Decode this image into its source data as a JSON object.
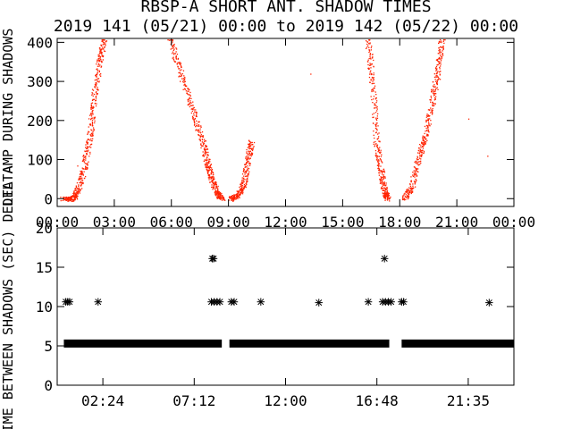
{
  "title": "RBSP-A SHORT ANT. SHADOW TIMES",
  "subtitle": "2019 141 (05/21) 00:00 to 2019 142 (05/22) 00:00",
  "colors": {
    "top_points": "#ff2200",
    "bottom_points": "#000000",
    "axes": "#000000"
  },
  "chart_data": [
    {
      "type": "scatter",
      "ylabel": "DELTA AMP DURING SHADOWS",
      "xlim": [
        0,
        24
      ],
      "ylim": [
        -20,
        410
      ],
      "xticks": [
        0,
        3,
        6,
        9,
        12,
        15,
        18,
        21,
        24
      ],
      "xtick_labels": [
        "00:00",
        "03:00",
        "06:00",
        "09:00",
        "12:00",
        "15:00",
        "18:00",
        "21:00",
        "00:00"
      ],
      "yticks": [
        0,
        100,
        200,
        300,
        400
      ],
      "ytick_labels": [
        "0",
        "100",
        "200",
        "300",
        "400"
      ],
      "segments": [
        {
          "x": [
            0.3,
            0.8,
            1.05,
            1.4,
            1.7,
            1.9,
            2.2,
            2.45
          ],
          "y": [
            0,
            0,
            20,
            80,
            160,
            250,
            350,
            410
          ]
        },
        {
          "x": [
            5.9,
            6.5,
            7.1,
            7.6,
            7.9,
            8.1,
            8.4,
            8.65
          ],
          "y": [
            410,
            320,
            230,
            150,
            90,
            50,
            15,
            0
          ]
        },
        {
          "x": [
            9.1,
            9.5,
            9.8,
            10.0,
            10.2
          ],
          "y": [
            0,
            10,
            40,
            100,
            150
          ]
        },
        {
          "x": [
            16.3,
            16.55,
            16.75,
            17.0,
            17.2,
            17.35
          ],
          "y": [
            410,
            300,
            150,
            70,
            20,
            0
          ]
        },
        {
          "x": [
            18.2,
            18.6,
            19.0,
            19.3,
            19.7,
            20.0,
            20.2
          ],
          "y": [
            0,
            30,
            110,
            160,
            250,
            330,
            410
          ]
        }
      ],
      "isolated": [
        {
          "x": 1.05,
          "y": 85
        },
        {
          "x": 13.3,
          "y": 320
        },
        {
          "x": 21.6,
          "y": 205
        },
        {
          "x": 22.6,
          "y": 110
        }
      ]
    },
    {
      "type": "scatter",
      "ylabel": "TIME BETWEEN SHADOWS (SEC)",
      "overlap_label": "DELTA",
      "xlim": [
        0,
        24
      ],
      "ylim": [
        0,
        20
      ],
      "xticks": [
        2.4,
        7.2,
        12.0,
        16.8,
        21.6
      ],
      "xtick_labels": [
        "02:24",
        "07:12",
        "12:00",
        "16:48",
        "21:35"
      ],
      "yticks": [
        0,
        5,
        10,
        15,
        20
      ],
      "ytick_labels": [
        "0",
        "5",
        "10",
        "15",
        "20"
      ],
      "band": {
        "y": 5.3,
        "ranges": [
          [
            0.35,
            8.65
          ],
          [
            9.05,
            17.45
          ],
          [
            18.1,
            24.0
          ]
        ]
      },
      "points": [
        {
          "x": 0.45,
          "y": 10.6
        },
        {
          "x": 0.55,
          "y": 10.6
        },
        {
          "x": 0.65,
          "y": 10.6
        },
        {
          "x": 2.15,
          "y": 10.6
        },
        {
          "x": 8.15,
          "y": 16.1
        },
        {
          "x": 8.22,
          "y": 16.1
        },
        {
          "x": 8.1,
          "y": 10.6
        },
        {
          "x": 8.25,
          "y": 10.6
        },
        {
          "x": 8.4,
          "y": 10.6
        },
        {
          "x": 8.55,
          "y": 10.6
        },
        {
          "x": 9.15,
          "y": 10.6
        },
        {
          "x": 9.3,
          "y": 10.6
        },
        {
          "x": 10.7,
          "y": 10.6
        },
        {
          "x": 13.75,
          "y": 10.5
        },
        {
          "x": 16.35,
          "y": 10.6
        },
        {
          "x": 17.2,
          "y": 16.1
        },
        {
          "x": 17.1,
          "y": 10.6
        },
        {
          "x": 17.25,
          "y": 10.6
        },
        {
          "x": 17.4,
          "y": 10.6
        },
        {
          "x": 17.55,
          "y": 10.6
        },
        {
          "x": 18.1,
          "y": 10.6
        },
        {
          "x": 18.2,
          "y": 10.6
        },
        {
          "x": 22.7,
          "y": 10.5
        }
      ]
    }
  ]
}
